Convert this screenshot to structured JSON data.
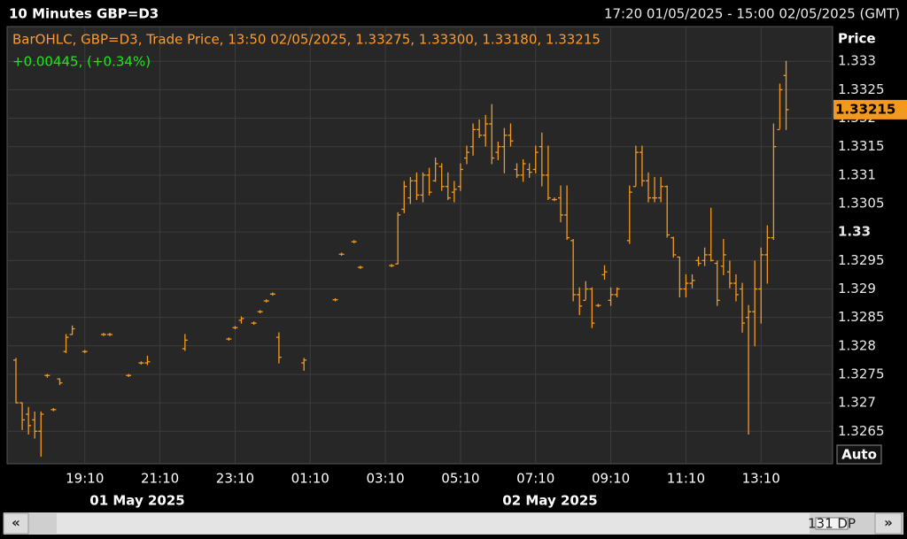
{
  "chart_data": {
    "type": "ohlc",
    "title": "10 Minutes GBP=D3",
    "range_text": "17:20 01/05/2025 - 15:00 02/05/2025 (GMT)",
    "legend_text": "BarOHLC, GBP=D3, Trade Price, 13:50 02/05/2025, 1.33275, 1.33300, 1.33180, 1.33215",
    "change_text": "+0.00445, (+0.34%)",
    "y_axis_title": "Price",
    "auto_button": "Auto",
    "dp_badge": "131 DP",
    "scroll_left": "«",
    "scroll_right": "»",
    "date_labels": [
      "01 May 2025",
      "02 May 2025"
    ],
    "xlim": [
      "2025-05-01 17:20",
      "2025-05-02 15:00"
    ],
    "ylim": [
      1.32596,
      1.33361
    ],
    "yticks": [
      1.3265,
      1.327,
      1.3275,
      1.328,
      1.3285,
      1.329,
      1.3295,
      1.33,
      1.3305,
      1.331,
      1.3315,
      1.332,
      1.3325,
      1.333
    ],
    "bold_ytick": 1.33,
    "xticks": [
      {
        "value": "2025-05-01 19:10",
        "label": "19:10"
      },
      {
        "value": "2025-05-01 21:10",
        "label": "21:10"
      },
      {
        "value": "2025-05-01 23:10",
        "label": "23:10"
      },
      {
        "value": "2025-05-02 01:10",
        "label": "01:10"
      },
      {
        "value": "2025-05-02 03:10",
        "label": "03:10"
      },
      {
        "value": "2025-05-02 05:10",
        "label": "05:10"
      },
      {
        "value": "2025-05-02 07:10",
        "label": "07:10"
      },
      {
        "value": "2025-05-02 09:10",
        "label": "09:10"
      },
      {
        "value": "2025-05-02 11:10",
        "label": "11:10"
      },
      {
        "value": "2025-05-02 13:10",
        "label": "13:10"
      }
    ],
    "grid": true,
    "series": [
      {
        "name": "GBP=D3",
        "color": "#f39a1e",
        "x": [
          "2025-05-01 17:20",
          "2025-05-01 17:30",
          "2025-05-01 17:40",
          "2025-05-01 17:50",
          "2025-05-01 18:00",
          "2025-05-01 18:10",
          "2025-05-01 18:20",
          "2025-05-01 18:30",
          "2025-05-01 18:40",
          "2025-05-01 18:50",
          "2025-05-01 19:10",
          "2025-05-01 19:40",
          "2025-05-01 19:50",
          "2025-05-01 20:20",
          "2025-05-01 20:40",
          "2025-05-01 20:50",
          "2025-05-01 21:50",
          "2025-05-01 23:00",
          "2025-05-01 23:10",
          "2025-05-01 23:20",
          "2025-05-01 23:40",
          "2025-05-01 23:50",
          "2025-05-02 00:00",
          "2025-05-02 00:10",
          "2025-05-02 00:20",
          "2025-05-02 01:00",
          "2025-05-02 01:50",
          "2025-05-02 02:00",
          "2025-05-02 02:20",
          "2025-05-02 02:30",
          "2025-05-02 03:20",
          "2025-05-02 03:30",
          "2025-05-02 03:40",
          "2025-05-02 03:50",
          "2025-05-02 04:00",
          "2025-05-02 04:10",
          "2025-05-02 04:20",
          "2025-05-02 04:30",
          "2025-05-02 04:40",
          "2025-05-02 04:50",
          "2025-05-02 05:00",
          "2025-05-02 05:10",
          "2025-05-02 05:20",
          "2025-05-02 05:30",
          "2025-05-02 05:40",
          "2025-05-02 05:50",
          "2025-05-02 06:00",
          "2025-05-02 06:10",
          "2025-05-02 06:20",
          "2025-05-02 06:30",
          "2025-05-02 06:40",
          "2025-05-02 06:50",
          "2025-05-02 07:00",
          "2025-05-02 07:10",
          "2025-05-02 07:20",
          "2025-05-02 07:30",
          "2025-05-02 07:40",
          "2025-05-02 07:50",
          "2025-05-02 08:00",
          "2025-05-02 08:10",
          "2025-05-02 08:20",
          "2025-05-02 08:30",
          "2025-05-02 08:40",
          "2025-05-02 08:50",
          "2025-05-02 09:00",
          "2025-05-02 09:10",
          "2025-05-02 09:20",
          "2025-05-02 09:40",
          "2025-05-02 09:50",
          "2025-05-02 10:00",
          "2025-05-02 10:10",
          "2025-05-02 10:20",
          "2025-05-02 10:30",
          "2025-05-02 10:40",
          "2025-05-02 10:50",
          "2025-05-02 11:00",
          "2025-05-02 11:10",
          "2025-05-02 11:20",
          "2025-05-02 11:30",
          "2025-05-02 11:40",
          "2025-05-02 11:50",
          "2025-05-02 12:00",
          "2025-05-02 12:10",
          "2025-05-02 12:20",
          "2025-05-02 12:30",
          "2025-05-02 12:40",
          "2025-05-02 12:50",
          "2025-05-02 13:00",
          "2025-05-02 13:10",
          "2025-05-02 13:20",
          "2025-05-02 13:30",
          "2025-05-02 13:40",
          "2025-05-02 13:50"
        ],
        "open": [
          1.32775,
          1.327,
          1.3268,
          1.3267,
          1.3265,
          1.32748,
          1.32688,
          1.32742,
          1.3279,
          1.3282,
          1.3279,
          1.3282,
          1.3282,
          1.32748,
          1.3277,
          1.3277,
          1.32795,
          1.32812,
          1.32832,
          1.32845,
          1.3284,
          1.3286,
          1.32879,
          1.32891,
          1.32815,
          1.3277,
          1.32881,
          1.32961,
          1.32983,
          1.32938,
          1.32941,
          1.32944,
          1.3304,
          1.3306,
          1.3309,
          1.33065,
          1.331,
          1.3309,
          1.33115,
          1.3308,
          1.3307,
          1.3308,
          1.3313,
          1.3315,
          1.3318,
          1.3317,
          1.3319,
          1.3314,
          1.3315,
          1.3317,
          1.3311,
          1.331,
          1.3311,
          1.3311,
          1.3315,
          1.331,
          1.33057,
          1.3306,
          1.3303,
          1.32985,
          1.3289,
          1.3288,
          1.329,
          1.32871,
          1.32925,
          1.3288,
          1.3289,
          1.32985,
          1.3308,
          1.3314,
          1.3309,
          1.3306,
          1.3306,
          1.3308,
          1.3299,
          1.32956,
          1.329,
          1.3291,
          1.3295,
          1.3295,
          1.3296,
          1.32945,
          1.3294,
          1.3293,
          1.3291,
          1.329,
          1.3285,
          1.3286,
          1.329,
          1.3296,
          1.3299,
          1.3318,
          1.33275
        ],
        "high": [
          1.32778,
          1.327,
          1.32692,
          1.32684,
          1.32684,
          1.3275,
          1.3269,
          1.32742,
          1.3282,
          1.32835,
          1.32792,
          1.32822,
          1.32822,
          1.3275,
          1.32772,
          1.32782,
          1.3282,
          1.32814,
          1.32834,
          1.32851,
          1.32842,
          1.32862,
          1.32881,
          1.32893,
          1.32823,
          1.32778,
          1.32883,
          1.32963,
          1.32985,
          1.3294,
          1.32943,
          1.33034,
          1.33089,
          1.33096,
          1.33104,
          1.33104,
          1.33112,
          1.3313,
          1.3312,
          1.33104,
          1.33089,
          1.3312,
          1.33151,
          1.3319,
          1.33197,
          1.33205,
          1.33224,
          1.33158,
          1.33182,
          1.3319,
          1.3312,
          1.33127,
          1.3312,
          1.33151,
          1.33174,
          1.33151,
          1.3306,
          1.33081,
          1.33081,
          1.32987,
          1.32902,
          1.32913,
          1.32902,
          1.32873,
          1.32941,
          1.32902,
          1.32902,
          1.33081,
          1.33151,
          1.33151,
          1.33104,
          1.33096,
          1.33096,
          1.33081,
          1.32991,
          1.32956,
          1.32925,
          1.32925,
          1.32956,
          1.32972,
          1.33042,
          1.32949,
          1.32987,
          1.32949,
          1.32925,
          1.3291,
          1.32871,
          1.32949,
          1.32972,
          1.33011,
          1.3319,
          1.3326,
          1.333
        ],
        "low": [
          1.327,
          1.32653,
          1.32645,
          1.32638,
          1.32606,
          1.32745,
          1.32686,
          1.32732,
          1.32788,
          1.3282,
          1.32788,
          1.32818,
          1.32818,
          1.32746,
          1.32768,
          1.32767,
          1.32792,
          1.3281,
          1.3283,
          1.3284,
          1.32838,
          1.32858,
          1.32877,
          1.32889,
          1.3277,
          1.32757,
          1.32879,
          1.32959,
          1.32981,
          1.32936,
          1.32939,
          1.32944,
          1.33034,
          1.3305,
          1.33057,
          1.33053,
          1.33065,
          1.33089,
          1.33073,
          1.33057,
          1.33053,
          1.33073,
          1.3312,
          1.33135,
          1.33166,
          1.33151,
          1.3312,
          1.33127,
          1.33104,
          1.33151,
          1.33096,
          1.33089,
          1.33096,
          1.33104,
          1.33081,
          1.33057,
          1.33055,
          1.33018,
          1.32987,
          1.32879,
          1.32855,
          1.32882,
          1.32832,
          1.32869,
          1.32917,
          1.32871,
          1.32886,
          1.3298,
          1.33081,
          1.33081,
          1.33053,
          1.33053,
          1.33053,
          1.32991,
          1.32956,
          1.32886,
          1.32886,
          1.32902,
          1.32941,
          1.32941,
          1.32949,
          1.32871,
          1.32925,
          1.32902,
          1.32879,
          1.32824,
          1.32645,
          1.328,
          1.3284,
          1.3291,
          1.32987,
          1.33182,
          1.3318
        ],
        "close": [
          1.327,
          1.3267,
          1.3266,
          1.3265,
          1.3268,
          1.32748,
          1.32688,
          1.32735,
          1.32815,
          1.3283,
          1.3279,
          1.3282,
          1.3282,
          1.32748,
          1.3277,
          1.32772,
          1.3281,
          1.32812,
          1.32832,
          1.32848,
          1.3284,
          1.3286,
          1.32879,
          1.32891,
          1.3278,
          1.32775,
          1.32881,
          1.32961,
          1.32983,
          1.32938,
          1.32941,
          1.3303,
          1.3308,
          1.3309,
          1.33065,
          1.331,
          1.3307,
          1.3312,
          1.3308,
          1.3306,
          1.33075,
          1.3311,
          1.3314,
          1.3318,
          1.3317,
          1.3319,
          1.3313,
          1.3315,
          1.3317,
          1.3316,
          1.331,
          1.3312,
          1.33105,
          1.3314,
          1.331,
          1.3306,
          1.33057,
          1.3303,
          1.3299,
          1.3289,
          1.3287,
          1.329,
          1.3284,
          1.32871,
          1.3293,
          1.3289,
          1.329,
          1.3307,
          1.3314,
          1.3309,
          1.3306,
          1.3306,
          1.3308,
          1.32995,
          1.3296,
          1.329,
          1.3291,
          1.32915,
          1.32945,
          1.3296,
          1.3295,
          1.3288,
          1.3296,
          1.3291,
          1.3289,
          1.3284,
          1.3286,
          1.329,
          1.3296,
          1.3299,
          1.3315,
          1.3325,
          1.33215
        ]
      }
    ]
  }
}
